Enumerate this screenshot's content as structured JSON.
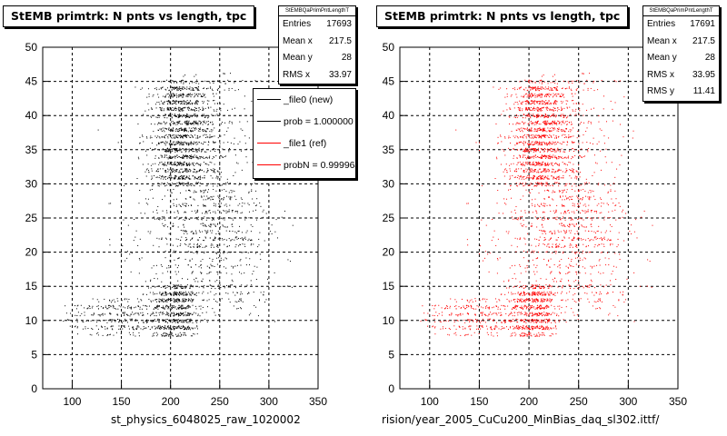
{
  "chart_data": [
    {
      "type": "scatter",
      "title": "StEMB primtrk: N pnts vs length, tpc",
      "xlabel": "st_physics_6048025_raw_1020002",
      "ylabel": "",
      "xlim": [
        70,
        350
      ],
      "ylim": [
        0,
        50
      ],
      "xticks": [
        100,
        150,
        200,
        250,
        300,
        350
      ],
      "yticks": [
        0,
        5,
        10,
        15,
        20,
        25,
        30,
        35,
        40,
        45,
        50
      ],
      "grid": true,
      "marker_color": "#000000",
      "stats_box": {
        "header": "StEMBQaPrimPntLengthT",
        "rows": [
          {
            "label": "Entries",
            "value": "17693"
          },
          {
            "label": "Mean x",
            "value": "217.5"
          },
          {
            "label": "Mean y",
            "value": "28"
          },
          {
            "label": "RMS x",
            "value": "33.97"
          }
        ]
      },
      "legend": {
        "position": "top-right",
        "entries": [
          {
            "label": "_file0 (new)",
            "color": "#000000"
          },
          {
            "label": "prob = 1.000000",
            "color": "#000000"
          },
          {
            "label": "_file1 (ref)",
            "color": "#ff0000"
          },
          {
            "label": "probN = 0.999964",
            "color": "#ff0000"
          }
        ]
      },
      "clusters": [
        {
          "x_mean": 210,
          "x_sd": 14,
          "y_min": 30,
          "y_max": 45,
          "weight": 0.32
        },
        {
          "x_mean": 235,
          "x_sd": 24,
          "y_min": 20,
          "y_max": 46,
          "weight": 0.16
        },
        {
          "x_mean": 215,
          "x_sd": 30,
          "y_min": 13,
          "y_max": 40,
          "weight": 0.16
        },
        {
          "x_mean": 205,
          "x_sd": 12,
          "y_min": 8,
          "y_max": 15,
          "weight": 0.17
        },
        {
          "x_mean": 150,
          "x_sd": 30,
          "y_min": 8,
          "y_max": 13,
          "weight": 0.1
        },
        {
          "x_mean": 260,
          "x_sd": 25,
          "y_min": 10,
          "y_max": 30,
          "weight": 0.09
        }
      ]
    },
    {
      "type": "scatter",
      "title": "StEMB primtrk: N pnts vs length, tpc",
      "xlabel": "rision/year_2005_CuCu200_MinBias_daq_sl302.ittf/",
      "ylabel": "",
      "xlim": [
        70,
        350
      ],
      "ylim": [
        0,
        50
      ],
      "xticks": [
        100,
        150,
        200,
        250,
        300,
        350
      ],
      "yticks": [
        0,
        5,
        10,
        15,
        20,
        25,
        30,
        35,
        40,
        45,
        50
      ],
      "grid": true,
      "marker_color": "#ff0000",
      "stats_box": {
        "header": "StEMBQaPrimPntLengthT",
        "rows": [
          {
            "label": "Entries",
            "value": "17691"
          },
          {
            "label": "Mean x",
            "value": "217.5"
          },
          {
            "label": "Mean y",
            "value": "28"
          },
          {
            "label": "RMS x",
            "value": "33.95"
          },
          {
            "label": "RMS y",
            "value": "11.41"
          }
        ]
      },
      "clusters": [
        {
          "x_mean": 210,
          "x_sd": 14,
          "y_min": 30,
          "y_max": 45,
          "weight": 0.32
        },
        {
          "x_mean": 235,
          "x_sd": 24,
          "y_min": 20,
          "y_max": 46,
          "weight": 0.16
        },
        {
          "x_mean": 215,
          "x_sd": 30,
          "y_min": 13,
          "y_max": 40,
          "weight": 0.16
        },
        {
          "x_mean": 205,
          "x_sd": 12,
          "y_min": 8,
          "y_max": 15,
          "weight": 0.17
        },
        {
          "x_mean": 150,
          "x_sd": 30,
          "y_min": 8,
          "y_max": 13,
          "weight": 0.1
        },
        {
          "x_mean": 260,
          "x_sd": 25,
          "y_min": 10,
          "y_max": 30,
          "weight": 0.09
        }
      ]
    }
  ]
}
